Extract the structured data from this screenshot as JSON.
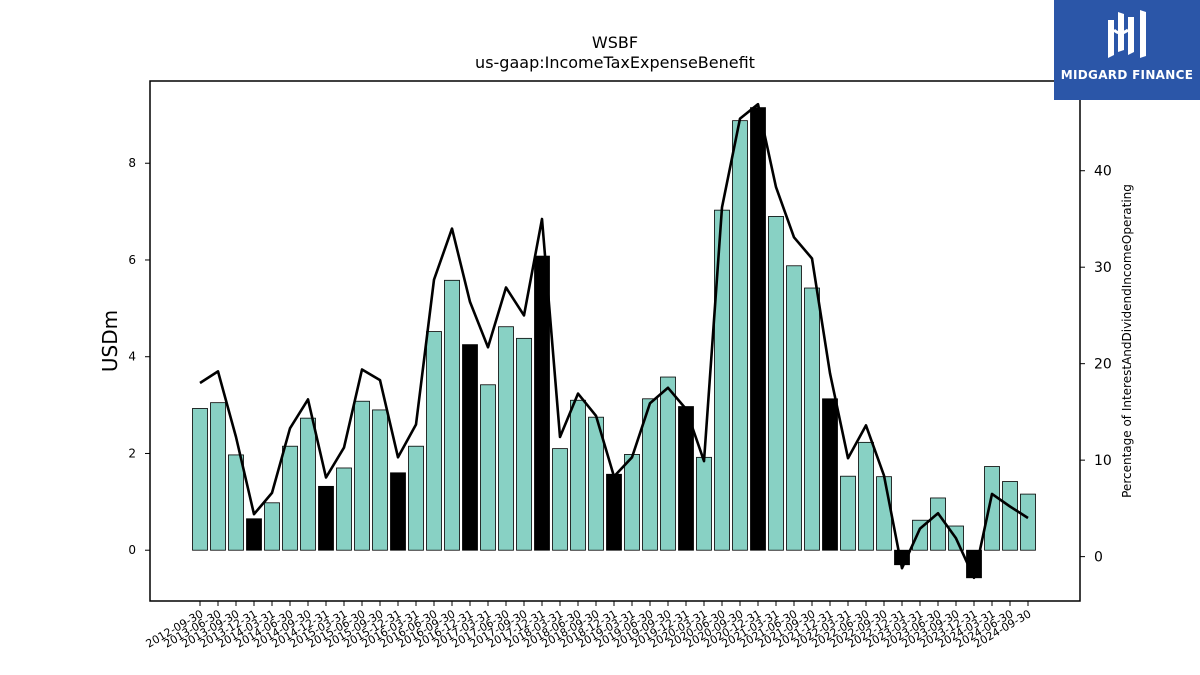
{
  "logo": {
    "text": "MIDGARD FINANCE"
  },
  "chart_data": {
    "type": "bar",
    "title": "WSBF",
    "subtitle": "us-gaap:IncomeTaxExpenseBenefit",
    "ylabel": "USDm",
    "y2label": "Percentage of InterestAndDividendIncomeOperating",
    "ylim": [
      -1.05,
      9.7
    ],
    "y2lim": [
      -4.6,
      49.3
    ],
    "yticks": [
      0,
      2,
      4,
      6,
      8
    ],
    "y2ticks": [
      0,
      10,
      20,
      30,
      40
    ],
    "colors": {
      "bar": "#88d1c4",
      "highlight": "#000000",
      "line": "#000000",
      "edge": "#000000"
    },
    "categories": [
      "2012-09-30",
      "2013-06-30",
      "2013-09-30",
      "2013-12-31",
      "2014-03-31",
      "2014-06-30",
      "2014-09-30",
      "2014-12-31",
      "2015-03-31",
      "2015-06-30",
      "2015-09-30",
      "2015-12-31",
      "2016-03-31",
      "2016-06-30",
      "2016-09-30",
      "2016-12-31",
      "2017-03-31",
      "2017-06-30",
      "2017-09-30",
      "2017-12-31",
      "2018-03-31",
      "2018-06-30",
      "2018-09-30",
      "2018-12-31",
      "2019-03-31",
      "2019-06-30",
      "2019-09-30",
      "2019-12-31",
      "2020-03-31",
      "2020-06-30",
      "2020-09-30",
      "2020-12-31",
      "2021-03-31",
      "2021-06-30",
      "2021-09-30",
      "2021-12-31",
      "2022-03-31",
      "2022-06-30",
      "2022-09-30",
      "2022-12-31",
      "2023-03-31",
      "2023-06-30",
      "2023-09-30",
      "2023-12-31",
      "2024-03-31",
      "2024-06-30",
      "2024-09-30"
    ],
    "series": [
      {
        "type": "bar",
        "values": [
          2.93,
          3.05,
          1.97,
          0.65,
          0.98,
          2.15,
          2.73,
          1.32,
          1.7,
          3.08,
          2.9,
          1.6,
          2.15,
          4.52,
          5.58,
          4.25,
          3.42,
          4.62,
          4.38,
          6.08,
          2.1,
          3.1,
          2.75,
          1.57,
          1.98,
          3.13,
          3.58,
          2.97,
          1.92,
          7.03,
          8.88,
          9.15,
          6.9,
          5.88,
          5.42,
          3.13,
          1.53,
          2.23,
          1.52,
          -0.3,
          0.62,
          1.08,
          0.5,
          -0.57,
          1.73,
          1.42,
          1.16
        ],
        "highlighted": [
          false,
          false,
          false,
          true,
          false,
          false,
          false,
          true,
          false,
          false,
          false,
          true,
          false,
          false,
          false,
          true,
          false,
          false,
          false,
          true,
          false,
          false,
          false,
          true,
          false,
          false,
          false,
          true,
          false,
          false,
          false,
          true,
          false,
          false,
          false,
          true,
          false,
          false,
          false,
          true,
          false,
          false,
          false,
          true,
          false,
          false,
          false
        ]
      },
      {
        "type": "line",
        "axis": "right",
        "values": [
          18.0,
          19.2,
          12.4,
          4.4,
          6.6,
          13.3,
          16.3,
          8.2,
          11.3,
          19.4,
          18.3,
          10.3,
          13.7,
          28.7,
          34.0,
          26.4,
          21.7,
          27.9,
          25.0,
          35.0,
          12.4,
          16.9,
          14.6,
          8.3,
          10.3,
          15.9,
          17.5,
          15.3,
          9.9,
          36.2,
          45.4,
          46.9,
          38.3,
          33.1,
          30.9,
          19.0,
          10.2,
          13.6,
          8.4,
          -1.2,
          2.9,
          4.5,
          1.9,
          -2.2,
          6.5,
          5.2,
          4.0
        ]
      }
    ]
  }
}
